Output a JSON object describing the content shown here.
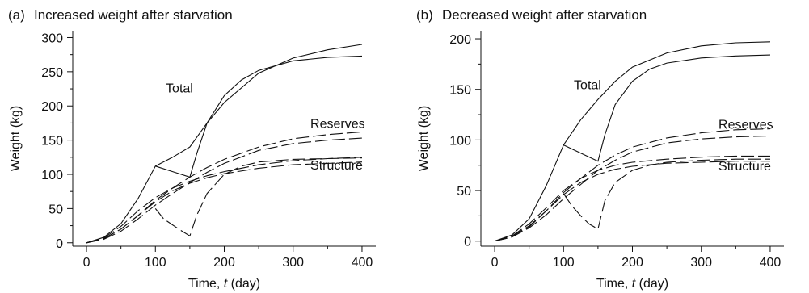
{
  "chart_data": [
    {
      "type": "line",
      "panel_label": "(a)",
      "title": "Increased weight after starvation",
      "xlabel": "Time, ",
      "xlabel_var": "t",
      "xlabel_unit": " (day)",
      "ylabel": "Weight (kg)",
      "xlim": [
        -20,
        420
      ],
      "ylim": [
        -5,
        310
      ],
      "xticks": [
        0,
        100,
        200,
        300,
        400
      ],
      "yticks": [
        0,
        50,
        100,
        150,
        200,
        250,
        300
      ],
      "curve_labels": [
        {
          "text": "Total",
          "at": [
            115,
            220
          ]
        },
        {
          "text": "Reserves",
          "at": [
            325,
            168
          ]
        },
        {
          "text": "Structure",
          "at": [
            325,
            107
          ]
        }
      ],
      "series": [
        {
          "style": "solid",
          "x": [
            0,
            25,
            50,
            75,
            100,
            125,
            150,
            175,
            200,
            250,
            300,
            350,
            400
          ],
          "y": [
            0,
            8,
            28,
            65,
            112,
            125,
            140,
            175,
            205,
            248,
            270,
            282,
            290
          ]
        },
        {
          "style": "solid",
          "x": [
            100,
            125,
            150,
            160,
            175,
            200,
            225,
            250,
            300,
            350,
            400
          ],
          "y": [
            112,
            104,
            96,
            130,
            175,
            215,
            238,
            252,
            266,
            271,
            273
          ]
        },
        {
          "style": "dashed",
          "x": [
            0,
            25,
            50,
            75,
            100,
            125,
            150,
            175,
            200,
            250,
            300,
            350,
            400
          ],
          "y": [
            0,
            6,
            20,
            40,
            62,
            80,
            96,
            110,
            122,
            140,
            152,
            158,
            162
          ]
        },
        {
          "style": "dashed",
          "x": [
            0,
            25,
            50,
            75,
            100,
            125,
            150,
            175,
            200,
            250,
            300,
            350,
            400
          ],
          "y": [
            0,
            5,
            17,
            35,
            55,
            72,
            88,
            103,
            116,
            135,
            145,
            150,
            153
          ]
        },
        {
          "style": "dashed",
          "x": [
            0,
            25,
            50,
            75,
            100,
            125,
            150,
            175,
            200,
            250,
            300,
            350,
            400
          ],
          "y": [
            0,
            7,
            24,
            47,
            66,
            80,
            90,
            98,
            104,
            114,
            120,
            123,
            125
          ]
        },
        {
          "style": "dashed",
          "x": [
            0,
            25,
            50,
            75,
            100,
            125,
            150,
            175,
            200,
            250,
            300,
            350,
            400
          ],
          "y": [
            0,
            6,
            20,
            40,
            60,
            76,
            87,
            95,
            101,
            109,
            114,
            116,
            118
          ]
        },
        {
          "style": "dashed",
          "x": [
            100,
            112,
            125,
            137,
            150,
            160,
            175,
            200,
            225,
            250,
            300,
            350,
            400
          ],
          "y": [
            50,
            35,
            26,
            18,
            10,
            40,
            72,
            100,
            112,
            118,
            122,
            123,
            124
          ]
        }
      ]
    },
    {
      "type": "line",
      "panel_label": "(b)",
      "title": "Decreased weight after starvation",
      "xlabel": "Time, ",
      "xlabel_var": "t",
      "xlabel_unit": " (day)",
      "ylabel": "Weight (kg)",
      "xlim": [
        -20,
        420
      ],
      "ylim": [
        -5,
        208
      ],
      "xticks": [
        0,
        100,
        200,
        300,
        400
      ],
      "yticks": [
        0,
        50,
        100,
        150,
        200
      ],
      "curve_labels": [
        {
          "text": "Total",
          "at": [
            115,
            150
          ]
        },
        {
          "text": "Reserves",
          "at": [
            325,
            111
          ]
        },
        {
          "text": "Structure",
          "at": [
            325,
            70
          ]
        }
      ],
      "series": [
        {
          "style": "solid",
          "x": [
            0,
            25,
            50,
            75,
            100,
            125,
            150,
            175,
            200,
            250,
            300,
            350,
            400
          ],
          "y": [
            0,
            6,
            22,
            55,
            95,
            120,
            140,
            158,
            172,
            186,
            193,
            196,
            197
          ]
        },
        {
          "style": "solid",
          "x": [
            100,
            125,
            150,
            160,
            175,
            200,
            225,
            250,
            300,
            350,
            400
          ],
          "y": [
            95,
            87,
            79,
            105,
            135,
            158,
            170,
            176,
            181,
            183,
            184
          ]
        },
        {
          "style": "dashed",
          "x": [
            0,
            25,
            50,
            75,
            100,
            125,
            150,
            175,
            200,
            250,
            300,
            350,
            400
          ],
          "y": [
            0,
            5,
            15,
            30,
            48,
            62,
            75,
            85,
            93,
            102,
            107,
            110,
            111
          ]
        },
        {
          "style": "dashed",
          "x": [
            0,
            25,
            50,
            75,
            100,
            125,
            150,
            175,
            200,
            250,
            300,
            350,
            400
          ],
          "y": [
            0,
            4,
            13,
            26,
            42,
            56,
            70,
            80,
            88,
            97,
            101,
            103,
            104
          ]
        },
        {
          "style": "dashed",
          "x": [
            0,
            25,
            50,
            75,
            100,
            125,
            150,
            175,
            200,
            250,
            300,
            350,
            400
          ],
          "y": [
            0,
            5,
            17,
            33,
            50,
            62,
            70,
            75,
            78,
            81,
            83,
            84,
            84
          ]
        },
        {
          "style": "dashed",
          "x": [
            0,
            25,
            50,
            75,
            100,
            125,
            150,
            175,
            200,
            250,
            300,
            350,
            400
          ],
          "y": [
            0,
            4,
            14,
            30,
            46,
            58,
            66,
            71,
            74,
            77,
            78,
            79,
            79
          ]
        },
        {
          "style": "dashed",
          "x": [
            100,
            112,
            125,
            137,
            150,
            160,
            175,
            200,
            225,
            250,
            300,
            350,
            400
          ],
          "y": [
            47,
            35,
            25,
            17,
            12,
            40,
            58,
            70,
            75,
            78,
            80,
            81,
            81
          ]
        }
      ]
    }
  ]
}
